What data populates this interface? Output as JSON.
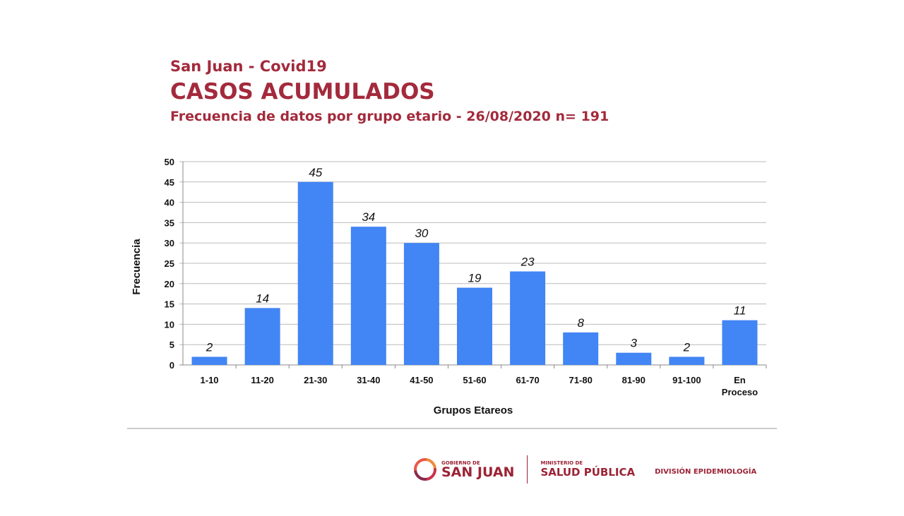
{
  "header": {
    "subtitle_top": "San Juan - Covid19",
    "title": "CASOS ACUMULADOS",
    "subtitle": "Frecuencia de datos por grupo etario - 26/08/2020 n= 191"
  },
  "chart_data": {
    "type": "bar",
    "categories": [
      "1-10",
      "11-20",
      "21-30",
      "31-40",
      "41-50",
      "51-60",
      "61-70",
      "71-80",
      "81-90",
      "91-100",
      "En Proceso"
    ],
    "values": [
      2,
      14,
      45,
      34,
      30,
      19,
      23,
      8,
      3,
      2,
      11
    ],
    "xlabel": "Grupos Etareos",
    "ylabel": "Frecuencia",
    "ylim": [
      0,
      50
    ],
    "yticks": [
      0,
      5,
      10,
      15,
      20,
      25,
      30,
      35,
      40,
      45,
      50
    ],
    "grid": true,
    "bar_color": "#4285f4"
  },
  "footer": {
    "gov_small": "GOBIERNO DE",
    "gov_big": "SAN JUAN",
    "min_small": "MINISTERIO DE",
    "min_big": "SALUD PÚBLICA",
    "division": "DIVISIÓN EPIDEMIOLOGÍA"
  }
}
